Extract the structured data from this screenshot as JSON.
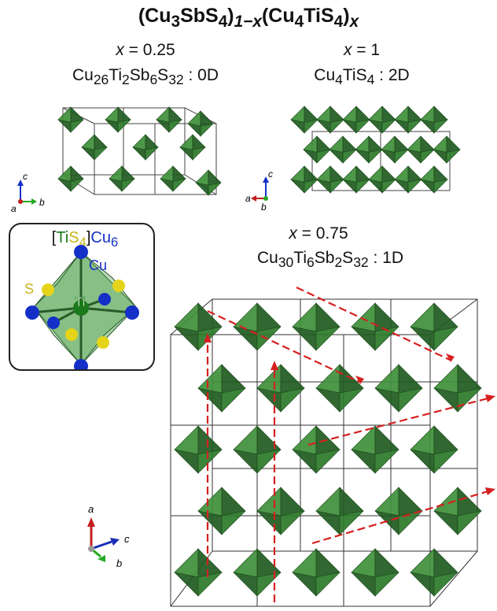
{
  "title": {
    "base1": "(Cu",
    "s1": "3",
    "base2": "SbS",
    "s2": "4",
    "base3": ")",
    "s3": "1−x",
    "base4": "(Cu",
    "s4": "4",
    "base5": "TiS",
    "s5": "4",
    "base6": ")",
    "s6": "x"
  },
  "panels": {
    "a": {
      "x_var": "x",
      "x_eq": "= 0.25",
      "f1": "Cu",
      "f1s": "26",
      "f2": "Ti",
      "f2s": "2",
      "f3": "Sb",
      "f3s": "6",
      "f4": "S",
      "f4s": "32",
      "dim": " : 0D"
    },
    "b": {
      "x_var": "x",
      "x_eq": "= 1",
      "f1": "Cu",
      "f1s": "4",
      "f2": "TiS",
      "f2s": "4",
      "dim": " : 2D"
    },
    "c": {
      "x_var": "x",
      "x_eq": "= 0.75",
      "f1": "Cu",
      "f1s": "30",
      "f2": "Ti",
      "f2s": "6",
      "f3": "Sb",
      "f3s": "2",
      "f4": "S",
      "f4s": "32",
      "dim": " : 1D"
    }
  },
  "inset": {
    "open": "[",
    "ti": "Ti",
    "s": "S",
    "sub4": "4",
    "close": "]",
    "cu": "Cu",
    "sub6": "6",
    "cu_label": "Cu",
    "s_label": "S",
    "ti_label": "Ti"
  },
  "axes": {
    "a": "a",
    "b": "b",
    "c": "c"
  },
  "colors": {
    "polyhedron": "#3f8f3a",
    "polyhedron_dark": "#1f5a1f",
    "cu": "#1530c8",
    "s": "#e5d41a",
    "ti": "#1a7a1a",
    "arrow": "#d62020"
  }
}
